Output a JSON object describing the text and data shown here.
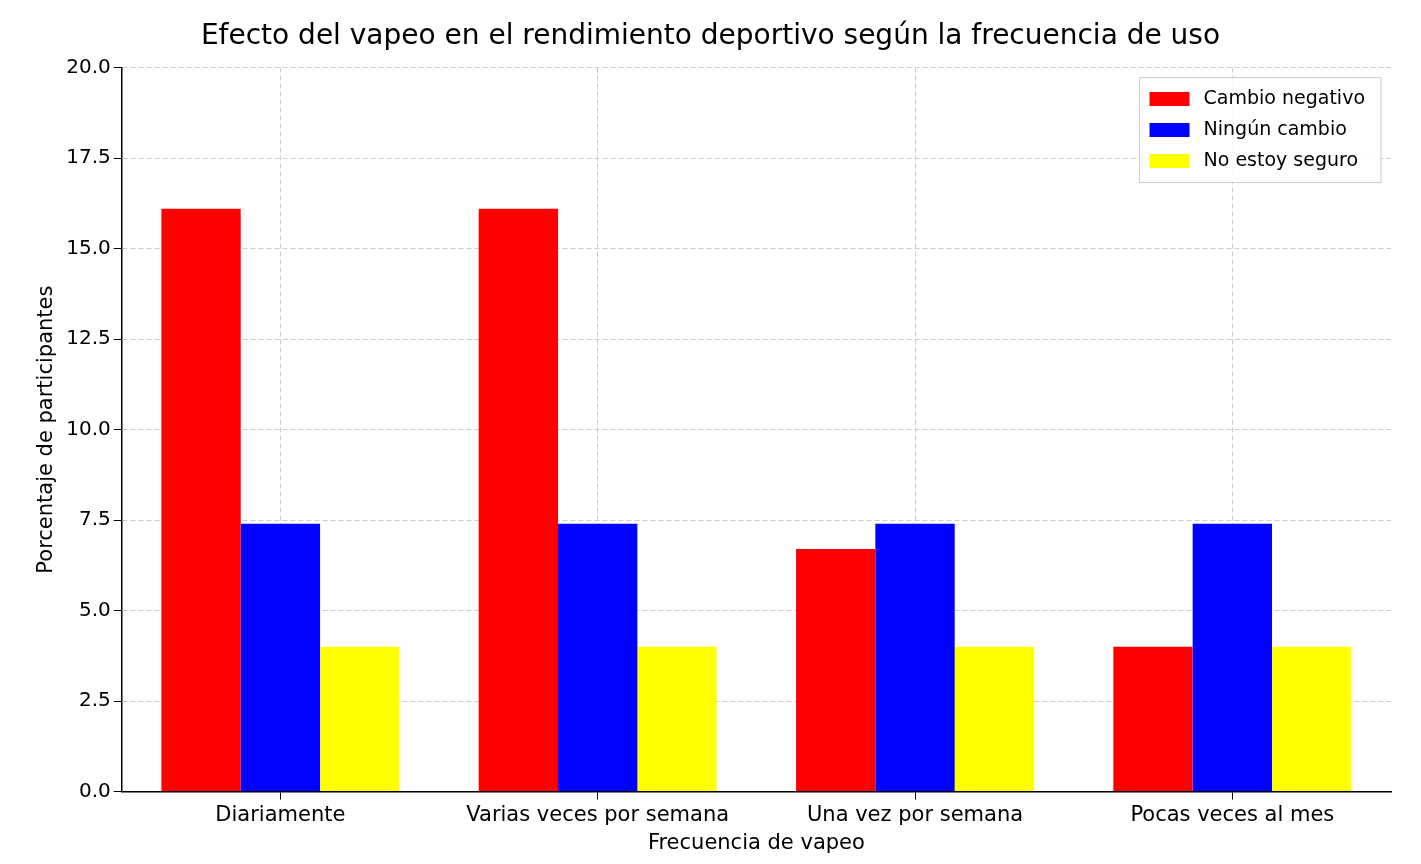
{
  "chart_data": {
    "type": "bar",
    "title": "Efecto del vapeo en el rendimiento deportivo según la frecuencia de uso",
    "xlabel": "Frecuencia de vapeo",
    "ylabel": "Porcentaje de participantes",
    "categories": [
      "Diariamente",
      "Varias veces por semana",
      "Una vez por semana",
      "Pocas veces al mes"
    ],
    "series": [
      {
        "name": "Cambio negativo",
        "color": "#ff0000",
        "values": [
          16.1,
          16.1,
          6.7,
          4.0
        ]
      },
      {
        "name": "Ningún cambio",
        "color": "#0000ff",
        "values": [
          7.4,
          7.4,
          7.4,
          7.4
        ]
      },
      {
        "name": "No estoy seguro",
        "color": "#ffff00",
        "values": [
          4.0,
          4.0,
          4.0,
          4.0
        ]
      }
    ],
    "ylim": [
      0,
      20
    ],
    "yticks": [
      {
        "value": 0,
        "label": "0.0"
      },
      {
        "value": 2.5,
        "label": "2.5"
      },
      {
        "value": 5,
        "label": "5.0"
      },
      {
        "value": 7.5,
        "label": "7.5"
      },
      {
        "value": 10,
        "label": "10.0"
      },
      {
        "value": 12.5,
        "label": "12.5"
      },
      {
        "value": 15,
        "label": "15.0"
      },
      {
        "value": 17.5,
        "label": "17.5"
      },
      {
        "value": 20,
        "label": "20.0"
      }
    ],
    "grid": true,
    "legend": "top right"
  }
}
